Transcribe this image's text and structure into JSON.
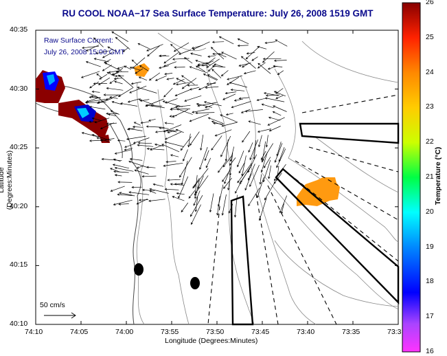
{
  "title": "RU COOL  NOAA−17  Sea Surface Temperature:  July 26, 2008 1519 GMT",
  "annotation_line1": "Raw Surface Current:",
  "annotation_line2": "July 26, 2008 15:00 GMT",
  "scale_label": "50 cm/s",
  "xlabel": "Longitude (Degrees:Minutes)",
  "ylabel": "Latitude (Degrees:Minutes)",
  "colorbar_label": "Temperature (°C)",
  "x_ticks": [
    "74:10",
    "74:05",
    "74:00",
    "73:55",
    "73:50",
    "73:45",
    "73:40",
    "73:35",
    "73:3"
  ],
  "y_ticks": [
    "40:35",
    "40:30",
    "40:25",
    "40:20",
    "40:15",
    "40:10"
  ],
  "colorbar_ticks": [
    "26",
    "25",
    "24",
    "23",
    "22",
    "21",
    "20",
    "19",
    "18",
    "17",
    "16"
  ],
  "colors": {
    "title": "#0a0a8c",
    "land_border": "#000000",
    "warm_patch": "#ff9a10",
    "hot_patch": "#8b0000"
  }
}
